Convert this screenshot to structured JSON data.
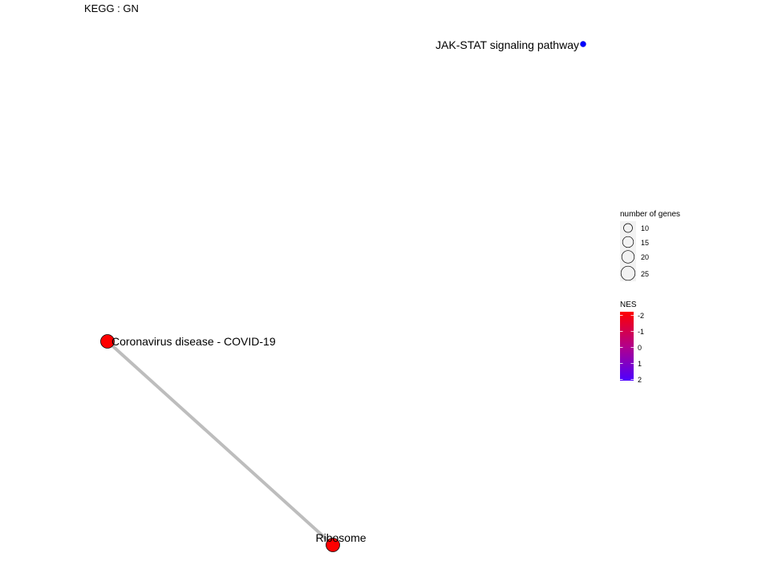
{
  "plot": {
    "title": "KEGG : GN"
  },
  "colors": {
    "edge": "#bdbdbd",
    "node_outline": "#000000",
    "nes_negative": "#ff0000",
    "nes_positive": "#0000ff"
  },
  "network": {
    "nodes": [
      {
        "id": "jak",
        "label": "JAK-STAT signaling pathway",
        "genes": 5,
        "nes": 2.0,
        "color": "#0000ff"
      },
      {
        "id": "covid",
        "label": "Coronavirus disease - COVID-19",
        "genes": 27,
        "nes": -2.0,
        "color": "#ff0000"
      },
      {
        "id": "ribo",
        "label": "Ribosome",
        "genes": 27,
        "nes": -2.0,
        "color": "#ff0000"
      }
    ],
    "edges": [
      {
        "source": "covid",
        "target": "ribo"
      }
    ]
  },
  "legend": {
    "size": {
      "title": "number of genes",
      "entries": [
        {
          "label": "10",
          "value": 10
        },
        {
          "label": "15",
          "value": 15
        },
        {
          "label": "20",
          "value": 20
        },
        {
          "label": "25",
          "value": 25
        }
      ]
    },
    "color": {
      "title": "NES",
      "ticks": [
        "-2",
        "-1",
        "0",
        "1",
        "2"
      ],
      "gradient": [
        "#ff0000",
        "#ff0030",
        "#c0007f",
        "#7f00c0",
        "#0000ff"
      ]
    }
  }
}
